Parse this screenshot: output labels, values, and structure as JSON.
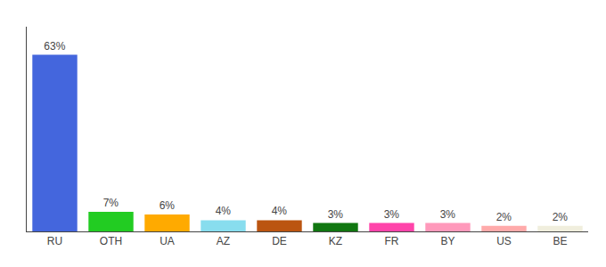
{
  "chart_data": {
    "type": "bar",
    "categories": [
      "RU",
      "OTH",
      "UA",
      "AZ",
      "DE",
      "KZ",
      "FR",
      "BY",
      "US",
      "BE"
    ],
    "values": [
      63,
      7,
      6,
      4,
      4,
      3,
      3,
      3,
      2,
      2
    ],
    "colors": [
      "#4466dd",
      "#22cc22",
      "#ffaa00",
      "#88ddee",
      "#bb5511",
      "#117711",
      "#ff44aa",
      "#ff99bb",
      "#ffaaaa",
      "#f0eedd"
    ],
    "data_labels": true,
    "value_labels": [
      "63%",
      "7%",
      "6%",
      "4%",
      "4%",
      "3%",
      "3%",
      "3%",
      "2%",
      "2%"
    ],
    "ylim": [
      0,
      73
    ],
    "grid": false,
    "tick_labels": "x"
  }
}
